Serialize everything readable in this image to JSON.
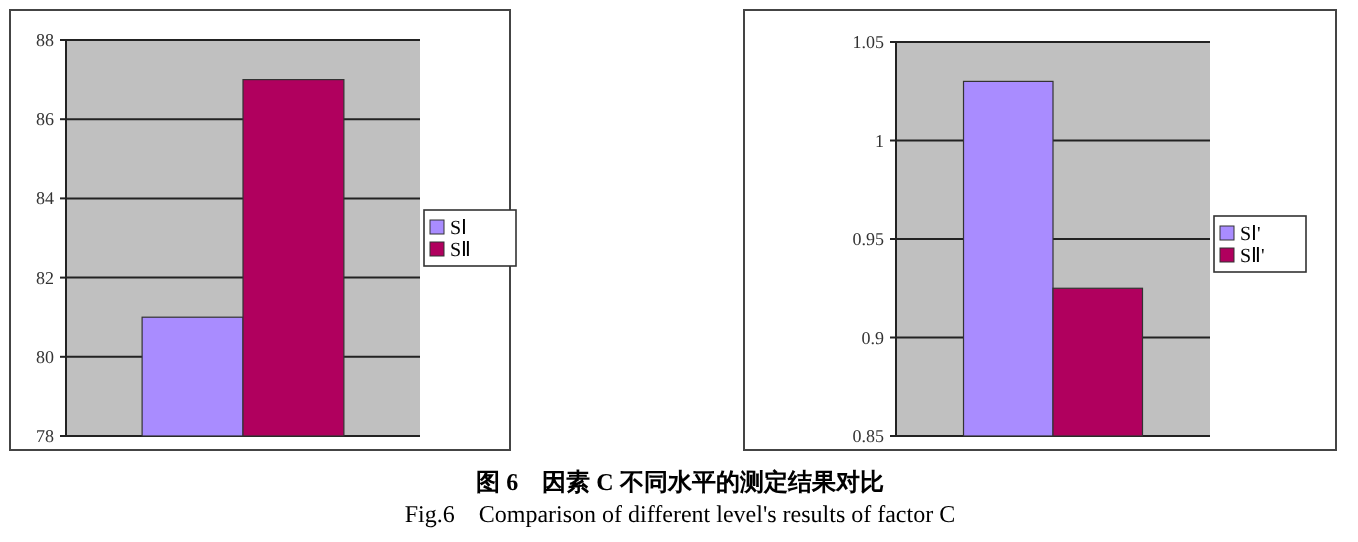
{
  "chart_data": [
    {
      "type": "bar",
      "categories": [
        null
      ],
      "series": [
        {
          "name": "SⅠ",
          "color": "#a98cff",
          "values": [
            81
          ]
        },
        {
          "name": "SⅡ",
          "color": "#b0005e",
          "values": [
            87
          ]
        }
      ],
      "ylim": [
        78,
        88
      ],
      "yticks": [
        78,
        80,
        82,
        84,
        86,
        88
      ],
      "grid": "y",
      "legend": "right",
      "annotations": [
        "图 6　因素 C 不同水平的测定结果对比",
        "Fig.6　Comparison of different level's results of factor C"
      ]
    },
    {
      "type": "bar",
      "categories": [
        null
      ],
      "series": [
        {
          "name": "SⅠ'",
          "color": "#a98cff",
          "values": [
            1.03
          ]
        },
        {
          "name": "SⅡ'",
          "color": "#b0005e",
          "values": [
            0.925
          ]
        }
      ],
      "ylim": [
        0.85,
        1.05
      ],
      "yticks": [
        0.85,
        0.9,
        0.95,
        1,
        1.05
      ],
      "grid": "y",
      "legend": "right"
    }
  ]
}
